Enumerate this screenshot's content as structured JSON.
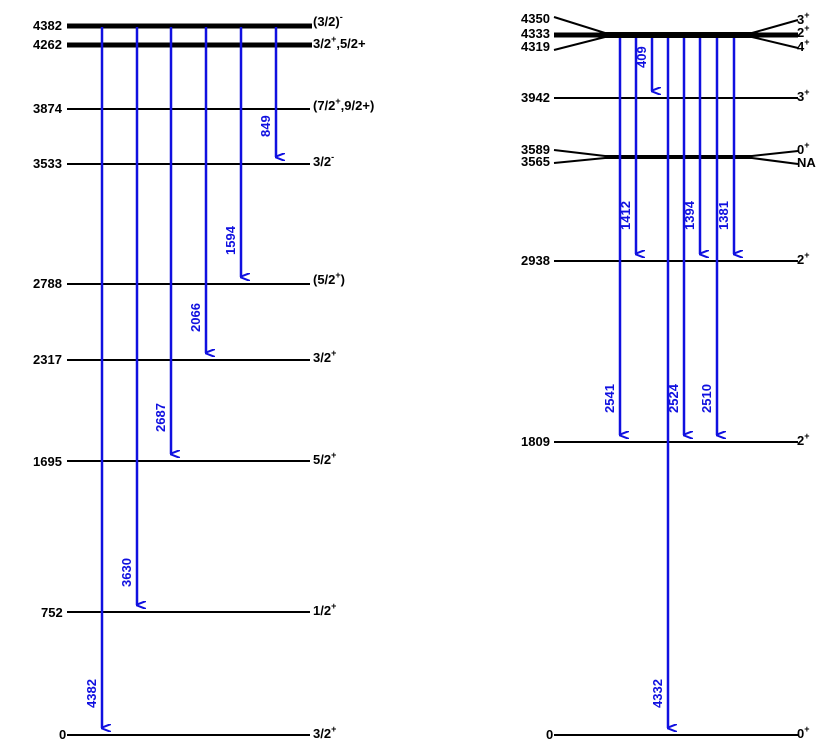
{
  "colors": {
    "transition": "#1010e0",
    "level": "#000000"
  },
  "left_scheme": {
    "levels": [
      {
        "energy": "4382",
        "spin": "(3/2)",
        "spin_sup": "-",
        "spin_tail": ""
      },
      {
        "energy": "4262",
        "spin": "3/2",
        "spin_sup": "+",
        "spin_tail": ",5/2+"
      },
      {
        "energy": "3874",
        "spin": "(7/2",
        "spin_sup": "+",
        "spin_tail": ",9/2+)"
      },
      {
        "energy": "3533",
        "spin": "3/2",
        "spin_sup": "-",
        "spin_tail": ""
      },
      {
        "energy": "2788",
        "spin": "(5/2",
        "spin_sup": "+",
        "spin_tail": ")"
      },
      {
        "energy": "2317",
        "spin": "3/2",
        "spin_sup": "+",
        "spin_tail": ""
      },
      {
        "energy": "1695",
        "spin": "5/2",
        "spin_sup": "+",
        "spin_tail": ""
      },
      {
        "energy": "752",
        "spin": "1/2",
        "spin_sup": "+",
        "spin_tail": ""
      },
      {
        "energy": "0",
        "spin": "3/2",
        "spin_sup": "+",
        "spin_tail": ""
      }
    ],
    "transitions": [
      "849",
      "1594",
      "2066",
      "2687",
      "3630",
      "4382"
    ]
  },
  "right_scheme": {
    "levels": [
      {
        "energy": "4350",
        "spin": "3",
        "spin_sup": "+"
      },
      {
        "energy": "4333",
        "spin": "2",
        "spin_sup": "+"
      },
      {
        "energy": "4319",
        "spin": "4",
        "spin_sup": "+"
      },
      {
        "energy": "3942",
        "spin": "3",
        "spin_sup": "+"
      },
      {
        "energy": "3589",
        "spin": "0",
        "spin_sup": "+"
      },
      {
        "energy": "3565",
        "spin": "NA",
        "spin_sup": ""
      },
      {
        "energy": "2938",
        "spin": "2",
        "spin_sup": "+"
      },
      {
        "energy": "1809",
        "spin": "2",
        "spin_sup": "+"
      },
      {
        "energy": "0",
        "spin": "0",
        "spin_sup": "+"
      }
    ],
    "transitions": [
      "409",
      "1412",
      "1394",
      "1381",
      "2541",
      "2524",
      "2510",
      "4332"
    ]
  }
}
